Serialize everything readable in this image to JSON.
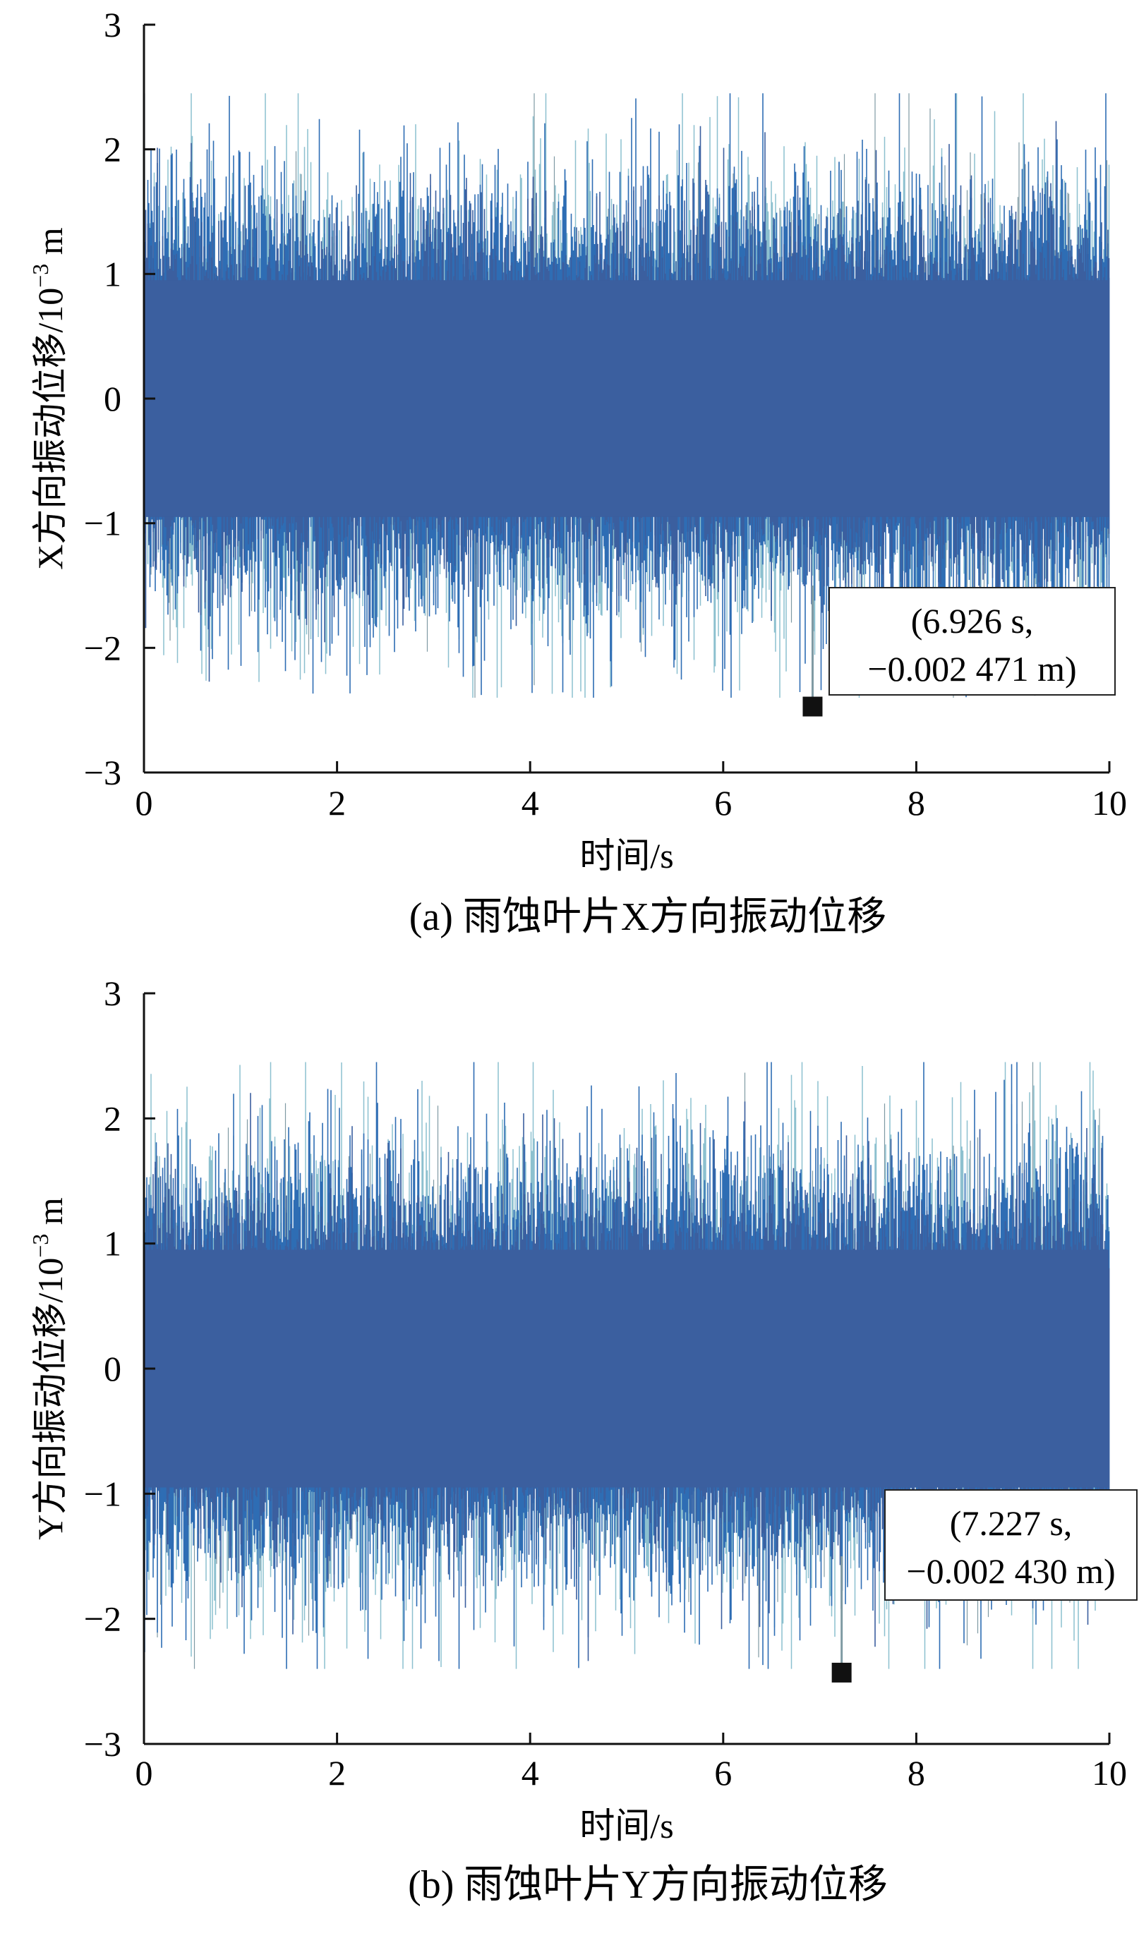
{
  "colors": {
    "core": "#3b5f9f",
    "mid": "#2e6db4",
    "light": "#8cc0cf",
    "grey": "#7f9aa3",
    "axis": "#111111"
  },
  "chart_data": [
    {
      "type": "line",
      "caption": "(a)  雨蚀叶片X方向振动位移",
      "xlabel": "时间/s",
      "ylabel": "X方向振动位移/10⁻³ m",
      "ylabel_main": "X方向振动位移/10",
      "ylabel_exp": "−3",
      "ylabel_unit": " m",
      "xlim": [
        0,
        10
      ],
      "ylim": [
        -3,
        3
      ],
      "xticks": [
        "0",
        "2",
        "4",
        "6",
        "8",
        "10"
      ],
      "yticks": [
        "−3",
        "−2",
        "−1",
        "0",
        "1",
        "2",
        "3"
      ],
      "grid": false,
      "series_description": "dense vibration displacement signal, core band about ±1.2, peaks up to about ±2.4",
      "marker": {
        "x": 6.926,
        "y": -2.471
      },
      "annotation": [
        "(6.926 s,",
        "−0.002 471 m)"
      ]
    },
    {
      "type": "line",
      "caption": "(b)  雨蚀叶片Y方向振动位移",
      "xlabel": "时间/s",
      "ylabel": "Y方向振动位移/10⁻³ m",
      "ylabel_main": "Y方向振动位移/10",
      "ylabel_exp": "−3",
      "ylabel_unit": " m",
      "xlim": [
        0,
        10
      ],
      "ylim": [
        -3,
        3
      ],
      "xticks": [
        "0",
        "2",
        "4",
        "6",
        "8",
        "10"
      ],
      "yticks": [
        "−3",
        "−2",
        "−1",
        "0",
        "1",
        "2",
        "3"
      ],
      "grid": false,
      "series_description": "dense vibration displacement signal, core band about ±1.2, peaks up to about ±2.4",
      "marker": {
        "x": 7.227,
        "y": -2.43
      },
      "annotation": [
        "(7.227 s,",
        "−0.002 430 m)"
      ]
    }
  ]
}
